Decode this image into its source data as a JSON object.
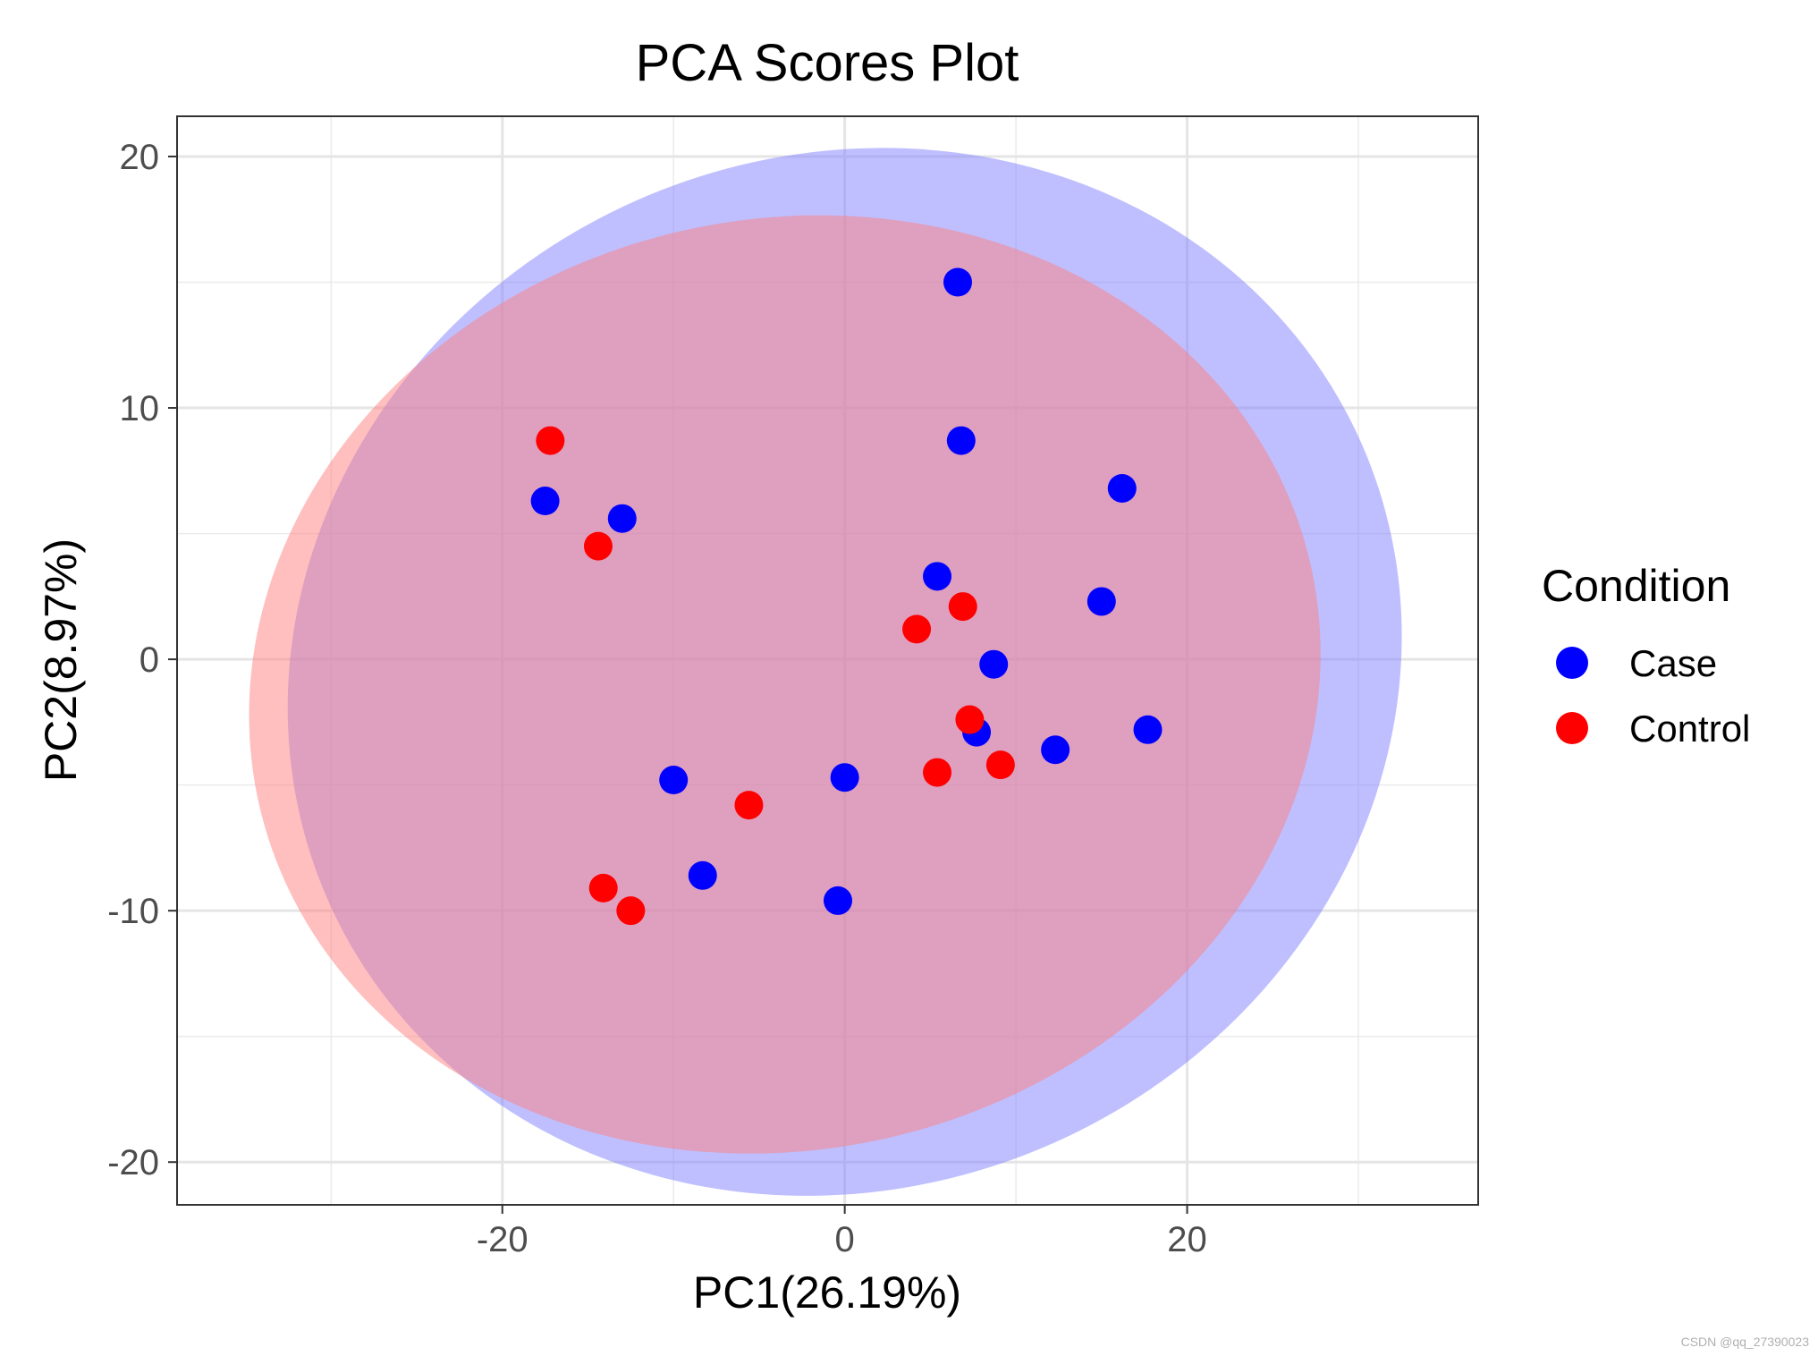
{
  "chart_data": {
    "type": "scatter",
    "title": "PCA Scores Plot",
    "xlabel": "PC1(26.19%)",
    "ylabel": "PC2(8.97%)",
    "xlim": [
      -39,
      37
    ],
    "ylim": [
      -21.7,
      21.6
    ],
    "x_ticks": [
      -20,
      0,
      20
    ],
    "x_tick_labels": [
      "-20",
      "0",
      "20"
    ],
    "y_ticks": [
      -20,
      -10,
      0,
      10,
      20
    ],
    "y_tick_labels": [
      "-20",
      "-10",
      "0",
      "10",
      "20"
    ],
    "grid": true,
    "legend": {
      "title": "Condition",
      "position": "right"
    },
    "series": [
      {
        "name": "Case",
        "color": "#0000FF",
        "ellipse_color": "#8080FF",
        "points": [
          [
            6.6,
            15.0
          ],
          [
            6.8,
            8.7
          ],
          [
            16.2,
            6.8
          ],
          [
            -17.5,
            6.3
          ],
          [
            -13.0,
            5.6
          ],
          [
            5.4,
            3.3
          ],
          [
            15.0,
            2.3
          ],
          [
            8.7,
            -0.2
          ],
          [
            7.7,
            -2.9
          ],
          [
            17.7,
            -2.8
          ],
          [
            12.3,
            -3.6
          ],
          [
            -10.0,
            -4.8
          ],
          [
            0.0,
            -4.7
          ],
          [
            -8.3,
            -8.6
          ],
          [
            -0.4,
            -9.6
          ]
        ],
        "ellipse": {
          "cx": 0.0,
          "cy": -0.5,
          "rx": 33.0,
          "ry": 20.5,
          "angle_deg": -24
        }
      },
      {
        "name": "Control",
        "color": "#FF0000",
        "ellipse_color": "#FF8080",
        "points": [
          [
            -17.2,
            8.7
          ],
          [
            -14.4,
            4.5
          ],
          [
            4.2,
            1.2
          ],
          [
            6.9,
            2.1
          ],
          [
            7.3,
            -2.4
          ],
          [
            5.4,
            -4.5
          ],
          [
            9.1,
            -4.2
          ],
          [
            -5.6,
            -5.8
          ],
          [
            -14.1,
            -9.1
          ],
          [
            -12.5,
            -10.0
          ]
        ],
        "ellipse": {
          "cx": -3.5,
          "cy": -1.0,
          "rx": 31.5,
          "ry": 18.5,
          "angle_deg": -13
        }
      }
    ]
  },
  "watermark": "CSDN @qq_27390023"
}
